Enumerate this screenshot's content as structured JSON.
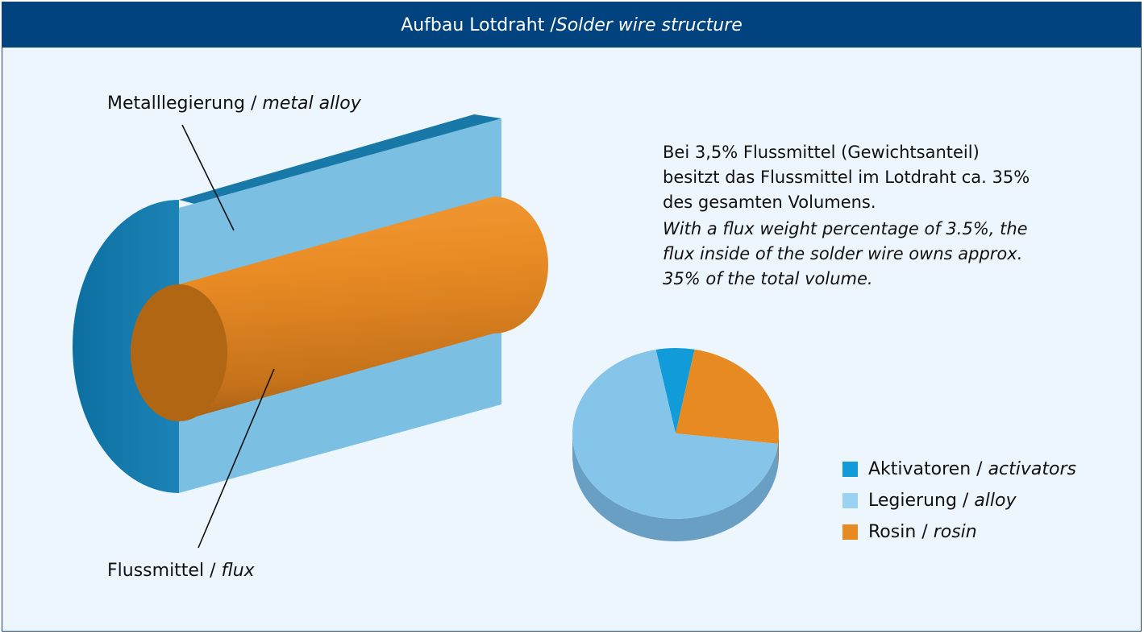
{
  "header": {
    "title_de": "Aufbau Lotdraht / ",
    "title_en": "Solder wire structure"
  },
  "labels": {
    "alloy_de": "Metalllegierung / ",
    "alloy_en": "metal alloy",
    "flux_de": "Flussmittel / ",
    "flux_en": "flux"
  },
  "info": {
    "de": "Bei 3,5% Flussmittel (Gewichtsanteil) besitzt das Flussmittel im Lotdraht ca. 35% des gesamten Volumens.",
    "en": "With a flux weight percentage of 3.5%, the flux inside of the solder wire owns approx. 35% of the total volume."
  },
  "chart_data": {
    "type": "pie",
    "slices": [
      {
        "name": "Aktivatoren / activators",
        "value": 6,
        "color": "#119bd9"
      },
      {
        "name": "Rosin / rosin",
        "value": 24,
        "color": "#e88a22"
      },
      {
        "name": "Legierung / alloy",
        "value": 70,
        "color": "#86c5ea"
      }
    ]
  },
  "legend": [
    {
      "de": "Aktivatoren / ",
      "en": "activators",
      "color": "#119bd9"
    },
    {
      "de": "Legierung / ",
      "en": "alloy",
      "color": "#9cd2f1"
    },
    {
      "de": "Rosin / ",
      "en": "rosin",
      "color": "#e88a22"
    }
  ],
  "colors": {
    "header_bg": "#00437e",
    "background": "#edf6fd",
    "metal_face": "#7bbfe3",
    "metal_dark": "#1474a3",
    "flux": "#e88a22",
    "flux_end": "#b06512"
  }
}
